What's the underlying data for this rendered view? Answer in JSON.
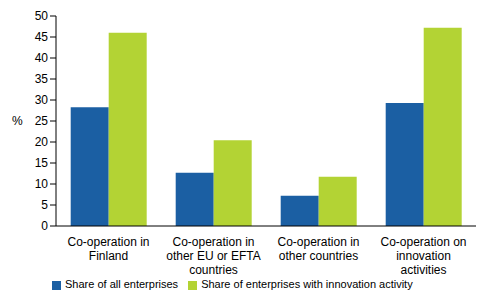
{
  "chart_data": {
    "type": "bar",
    "categories": [
      "Co-operation in Finland",
      "Co-operation in other EU or EFTA countries",
      "Co-operation in other countries",
      "Co-operation on innovation activities"
    ],
    "series": [
      {
        "name": "Share of all enterprises",
        "color": "#1b5fa3",
        "values": [
          28.3,
          12.7,
          7.2,
          29.3
        ]
      },
      {
        "name": "Share of enterprises with innovation activity",
        "color": "#b3d334",
        "values": [
          46,
          20.4,
          11.7,
          47.2
        ]
      }
    ],
    "y_label": "%",
    "ylim": [
      0,
      50
    ],
    "yticks": [
      0,
      5,
      10,
      15,
      20,
      25,
      30,
      35,
      40,
      45,
      50
    ],
    "grid": false,
    "legend": "bottom"
  }
}
